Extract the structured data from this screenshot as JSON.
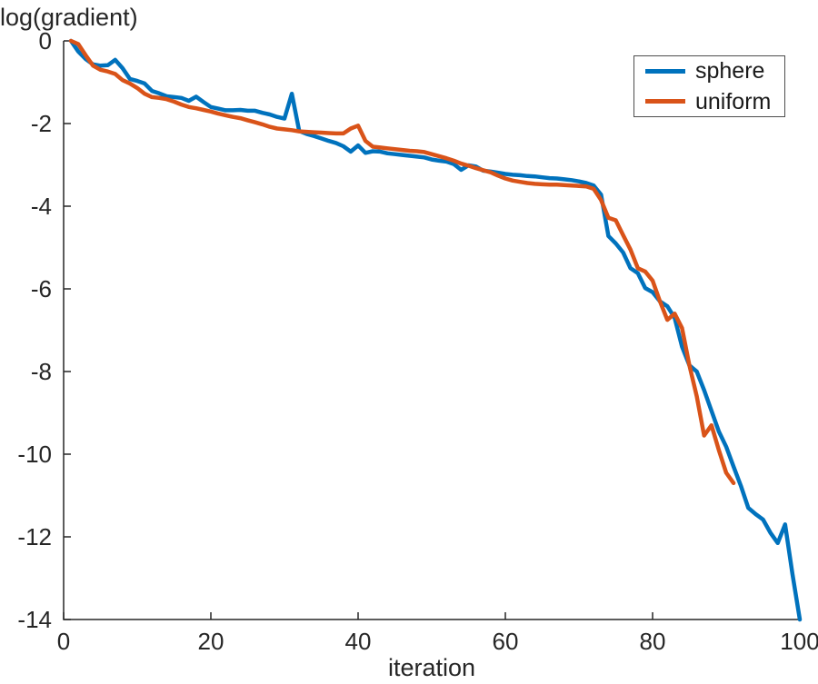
{
  "figure": {
    "title": "log(gradient)",
    "xlabel": "iteration"
  },
  "legend": {
    "items": [
      {
        "label": "sphere",
        "color": "#0072BD"
      },
      {
        "label": "uniform",
        "color": "#D95319"
      }
    ]
  },
  "chart_data": {
    "type": "line",
    "title": "log(gradient)",
    "xlabel": "iteration",
    "ylabel": "",
    "xlim": [
      0,
      100
    ],
    "ylim": [
      -14,
      0
    ],
    "x_ticks": [
      0,
      20,
      40,
      60,
      80,
      100
    ],
    "y_ticks": [
      0,
      -2,
      -4,
      -6,
      -8,
      -10,
      -12,
      -14
    ],
    "grid": false,
    "legend_position": "top-right",
    "axis_color": "#262626",
    "line_width": 4.5,
    "series": [
      {
        "name": "sphere",
        "color": "#0072BD",
        "x": [
          1,
          2,
          3,
          4,
          5,
          6,
          7,
          8,
          9,
          10,
          11,
          12,
          13,
          14,
          15,
          16,
          17,
          18,
          19,
          20,
          21,
          22,
          23,
          24,
          25,
          26,
          27,
          28,
          29,
          30,
          31,
          32,
          33,
          34,
          35,
          36,
          37,
          38,
          39,
          40,
          41,
          42,
          43,
          44,
          45,
          46,
          47,
          48,
          49,
          50,
          51,
          52,
          53,
          54,
          55,
          56,
          57,
          58,
          59,
          60,
          61,
          62,
          63,
          64,
          65,
          66,
          67,
          68,
          69,
          70,
          71,
          72,
          73,
          74,
          75,
          76,
          77,
          78,
          79,
          80,
          81,
          82,
          83,
          84,
          85,
          86,
          87,
          88,
          89,
          90,
          91,
          92,
          93,
          94,
          95,
          96,
          97,
          98,
          99,
          100
        ],
        "y": [
          0.0,
          -0.26,
          -0.44,
          -0.57,
          -0.6,
          -0.59,
          -0.46,
          -0.66,
          -0.92,
          -0.97,
          -1.03,
          -1.21,
          -1.27,
          -1.34,
          -1.36,
          -1.38,
          -1.45,
          -1.35,
          -1.48,
          -1.6,
          -1.64,
          -1.68,
          -1.68,
          -1.67,
          -1.69,
          -1.69,
          -1.74,
          -1.78,
          -1.84,
          -1.88,
          -1.28,
          -2.18,
          -2.25,
          -2.3,
          -2.36,
          -2.42,
          -2.47,
          -2.55,
          -2.68,
          -2.53,
          -2.71,
          -2.67,
          -2.68,
          -2.72,
          -2.74,
          -2.76,
          -2.78,
          -2.8,
          -2.82,
          -2.87,
          -2.9,
          -2.92,
          -2.98,
          -3.12,
          -3.01,
          -3.04,
          -3.14,
          -3.16,
          -3.19,
          -3.22,
          -3.24,
          -3.25,
          -3.27,
          -3.28,
          -3.3,
          -3.32,
          -3.33,
          -3.35,
          -3.37,
          -3.4,
          -3.44,
          -3.5,
          -3.72,
          -4.72,
          -4.9,
          -5.12,
          -5.5,
          -5.62,
          -5.98,
          -6.08,
          -6.3,
          -6.42,
          -6.7,
          -7.4,
          -7.85,
          -8.0,
          -8.45,
          -8.95,
          -9.45,
          -9.82,
          -10.3,
          -10.77,
          -11.3,
          -11.45,
          -11.58,
          -11.9,
          -12.15,
          -11.7,
          -12.9,
          -14.0
        ]
      },
      {
        "name": "uniform",
        "color": "#D95319",
        "x": [
          1,
          2,
          3,
          4,
          5,
          6,
          7,
          8,
          9,
          10,
          11,
          12,
          13,
          14,
          15,
          16,
          17,
          18,
          19,
          20,
          21,
          22,
          23,
          24,
          25,
          26,
          27,
          28,
          29,
          30,
          31,
          32,
          33,
          34,
          35,
          36,
          37,
          38,
          39,
          40,
          41,
          42,
          43,
          44,
          45,
          46,
          47,
          48,
          49,
          50,
          51,
          52,
          53,
          54,
          55,
          56,
          57,
          58,
          59,
          60,
          61,
          62,
          63,
          64,
          65,
          66,
          67,
          68,
          69,
          70,
          71,
          72,
          73,
          74,
          75,
          76,
          77,
          78,
          79,
          80,
          81,
          82,
          83,
          84,
          85,
          86,
          87,
          88,
          89,
          90,
          91
        ],
        "y": [
          0.0,
          -0.08,
          -0.35,
          -0.6,
          -0.7,
          -0.74,
          -0.8,
          -0.95,
          -1.03,
          -1.14,
          -1.28,
          -1.36,
          -1.38,
          -1.41,
          -1.47,
          -1.54,
          -1.6,
          -1.63,
          -1.67,
          -1.71,
          -1.76,
          -1.8,
          -1.84,
          -1.87,
          -1.92,
          -1.97,
          -2.02,
          -2.08,
          -2.12,
          -2.14,
          -2.16,
          -2.19,
          -2.2,
          -2.21,
          -2.22,
          -2.23,
          -2.24,
          -2.24,
          -2.12,
          -2.05,
          -2.42,
          -2.56,
          -2.58,
          -2.6,
          -2.62,
          -2.64,
          -2.66,
          -2.67,
          -2.69,
          -2.74,
          -2.79,
          -2.84,
          -2.9,
          -2.97,
          -3.02,
          -3.08,
          -3.13,
          -3.18,
          -3.26,
          -3.33,
          -3.38,
          -3.41,
          -3.44,
          -3.46,
          -3.47,
          -3.48,
          -3.48,
          -3.49,
          -3.5,
          -3.51,
          -3.52,
          -3.58,
          -3.85,
          -4.28,
          -4.34,
          -4.7,
          -5.05,
          -5.5,
          -5.58,
          -5.8,
          -6.3,
          -6.75,
          -6.6,
          -6.95,
          -7.85,
          -8.6,
          -9.55,
          -9.3,
          -9.9,
          -10.45,
          -10.7
        ]
      }
    ]
  }
}
